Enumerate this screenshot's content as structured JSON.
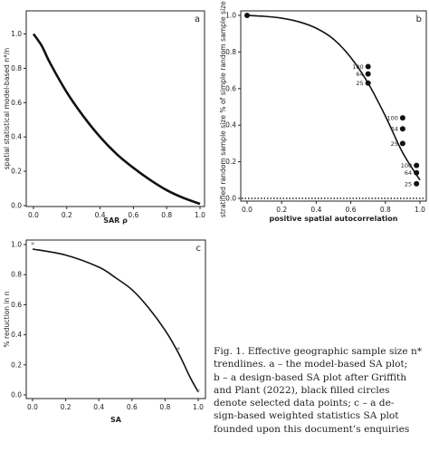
{
  "chart_data": [
    {
      "panel": "a",
      "type": "line",
      "xlabel": "SAR ρ",
      "ylabel": "spatial statistical model-based n*/n",
      "xlim": [
        0,
        1
      ],
      "ylim": [
        0,
        1.05
      ],
      "xticks": [
        "0.0",
        "0.2",
        "0.4",
        "0.6",
        "0.8",
        "1.0"
      ],
      "yticks": [
        "0.0",
        "0.2",
        "0.4",
        "0.6",
        "0.8",
        "1.0"
      ],
      "grid": false,
      "series": [
        {
          "x": [
            0,
            0.05,
            0.1,
            0.2,
            0.3,
            0.4,
            0.5,
            0.6,
            0.7,
            0.8,
            0.9,
            1.0
          ],
          "y": [
            1.0,
            0.93,
            0.83,
            0.66,
            0.52,
            0.4,
            0.3,
            0.22,
            0.15,
            0.09,
            0.045,
            0.01
          ]
        }
      ]
    },
    {
      "panel": "b",
      "type": "line",
      "xlabel": "positive spatial autocorrelation",
      "ylabel": "stratified random sample size % of simple random sample size n",
      "xlim": [
        0,
        1
      ],
      "ylim": [
        0,
        1
      ],
      "xticks": [
        "0.0",
        "0.2",
        "0.4",
        "0.6",
        "0.8",
        "1.0"
      ],
      "yticks": [
        "0.0",
        "0.2",
        "0.4",
        "0.6",
        "0.8",
        "1.0"
      ],
      "grid": false,
      "series": [
        {
          "x": [
            0,
            0.1,
            0.2,
            0.3,
            0.4,
            0.5,
            0.6,
            0.7,
            0.8,
            0.9,
            1.0
          ],
          "y": [
            1.0,
            0.995,
            0.985,
            0.965,
            0.93,
            0.87,
            0.77,
            0.63,
            0.45,
            0.25,
            0.1
          ]
        }
      ],
      "points": [
        {
          "x": 0.0,
          "y": 1.0
        },
        {
          "x": 0.7,
          "y": 0.72
        },
        {
          "x": 0.7,
          "y": 0.68
        },
        {
          "x": 0.7,
          "y": 0.63
        },
        {
          "x": 0.9,
          "y": 0.44
        },
        {
          "x": 0.9,
          "y": 0.38
        },
        {
          "x": 0.9,
          "y": 0.3
        },
        {
          "x": 0.98,
          "y": 0.18
        },
        {
          "x": 0.98,
          "y": 0.14
        },
        {
          "x": 0.98,
          "y": 0.08
        }
      ],
      "point_labels": [
        {
          "x": 0.7,
          "y": 0.72,
          "text": "100"
        },
        {
          "x": 0.7,
          "y": 0.68,
          "text": "64"
        },
        {
          "x": 0.7,
          "y": 0.63,
          "text": "25"
        },
        {
          "x": 0.9,
          "y": 0.44,
          "text": "100"
        },
        {
          "x": 0.9,
          "y": 0.38,
          "text": "64"
        },
        {
          "x": 0.9,
          "y": 0.3,
          "text": "25"
        },
        {
          "x": 0.98,
          "y": 0.18,
          "text": "100"
        },
        {
          "x": 0.98,
          "y": 0.14,
          "text": "64"
        },
        {
          "x": 0.98,
          "y": 0.08,
          "text": "25"
        }
      ],
      "reference_line": {
        "y": 0,
        "style": "dotted"
      }
    },
    {
      "panel": "c",
      "type": "line",
      "xlabel": "SA",
      "ylabel": "% reduction in n",
      "xlim": [
        0,
        1
      ],
      "ylim": [
        0,
        1
      ],
      "xticks": [
        "0.0",
        "0.2",
        "0.4",
        "0.6",
        "0.8",
        "1.0"
      ],
      "yticks": [
        "0.0",
        "0.2",
        "0.4",
        "0.6",
        "0.8",
        "1.0"
      ],
      "grid": false,
      "series": [
        {
          "x": [
            0,
            0.2,
            0.4,
            0.5,
            0.6,
            0.7,
            0.8,
            0.88,
            0.95,
            1.0
          ],
          "y": [
            0.97,
            0.93,
            0.85,
            0.78,
            0.7,
            0.58,
            0.43,
            0.28,
            0.12,
            0.02
          ]
        }
      ],
      "points": [
        {
          "x": 0.0,
          "y": 1.0
        },
        {
          "x": 0.88,
          "y": 0.3
        },
        {
          "x": 1.0,
          "y": 0.02
        }
      ]
    }
  ],
  "caption": {
    "lines": [
      "Fig. 1. Effective geographic sample size n*",
      "trendlines. a – the model-based SA plot;",
      "b – a design-based SA plot after Griffith",
      "and Plant (2022), black filled circles",
      "denote selected data points; c – a de-",
      "sign-based weighted statistics SA plot",
      "founded upon this document’s enquiries"
    ]
  }
}
